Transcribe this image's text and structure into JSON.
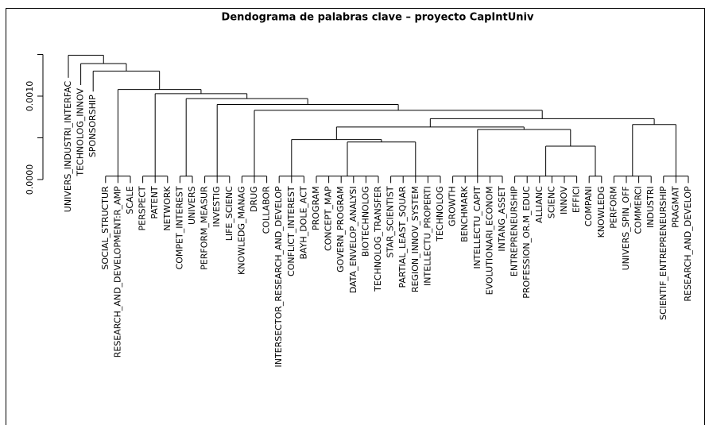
{
  "chart_data": {
    "type": "dendrogram",
    "title": "Dendograma de palabras clave – proyecto CapIntUniv",
    "ylim": [
      0,
      0.0015
    ],
    "yticks": [
      {
        "value": 0,
        "label": "0.0000"
      },
      {
        "value": 0.0005,
        "label": null
      },
      {
        "value": 0.001,
        "label": "0.0010"
      },
      {
        "value": 0.0015,
        "label": null
      }
    ],
    "color": "#000000",
    "tree": {
      "height": 0.00149,
      "children": [
        {
          "label": "UNIVERS_INDUSTRI_INTERFAC"
        },
        {
          "height": 0.00139,
          "children": [
            {
              "label": "TECHNOLOG_INNOV"
            },
            {
              "height": 0.0013,
              "children": [
                {
                  "label": "SPONSORSHIP"
                },
                {
                  "height": 0.00108,
                  "children": [
                    {
                      "height": 4e-05,
                      "children": [
                        {
                          "label": "SOCIAL_STRUCTUR"
                        },
                        {
                          "label": "RESEARCH_AND_DEVELOPMENT:R_AMP"
                        },
                        {
                          "label": "SCALE"
                        }
                      ]
                    },
                    {
                      "height": 0.00103,
                      "children": [
                        {
                          "height": 4e-05,
                          "children": [
                            {
                              "label": "PERSPECT"
                            },
                            {
                              "label": "PATENT"
                            },
                            {
                              "label": "NETWORK"
                            }
                          ]
                        },
                        {
                          "height": 0.00097,
                          "children": [
                            {
                              "height": 4e-05,
                              "children": [
                                {
                                  "label": "COMPET_INTEREST"
                                },
                                {
                                  "label": "UNIVERS"
                                }
                              ]
                            },
                            {
                              "height": 0.0009,
                              "children": [
                                {
                                  "height": 4e-05,
                                  "children": [
                                    {
                                      "label": "PERFORM_MEASUR"
                                    },
                                    {
                                      "label": "INVESTIG"
                                    },
                                    {
                                      "label": "LIFE_SCIENC"
                                    }
                                  ]
                                },
                                {
                                  "height": 0.00083,
                                  "children": [
                                    {
                                      "height": 4e-05,
                                      "children": [
                                        {
                                          "label": "KNOWLEDG_MANAG"
                                        },
                                        {
                                          "label": "DRUG"
                                        },
                                        {
                                          "label": "COLLABOR"
                                        }
                                      ]
                                    },
                                    {
                                      "height": 0.00073,
                                      "children": [
                                        {
                                          "height": 0.00063,
                                          "children": [
                                            {
                                              "height": 0.00048,
                                              "children": [
                                                {
                                                  "height": 4e-05,
                                                  "children": [
                                                    {
                                                      "label": "INTERSECTOR_RESEARCH_AND_DEVELOP"
                                                    },
                                                    {
                                                      "label": "CONFLICT_INTEREST"
                                                    },
                                                    {
                                                      "label": "BAYH_DOLE_ACT"
                                                    }
                                                  ]
                                                },
                                                {
                                                  "height": 0.00045,
                                                  "children": [
                                                    {
                                                      "height": 4e-05,
                                                      "children": [
                                                        {
                                                          "label": "PROGRAM"
                                                        },
                                                        {
                                                          "label": "CONCEPT_MAP"
                                                        },
                                                        {
                                                          "label": "GOVERN_PROGRAM"
                                                        },
                                                        {
                                                          "label": "DATA_ENVELOP_ANALYSI"
                                                        },
                                                        {
                                                          "label": "BIOTECHNOLOG"
                                                        },
                                                        {
                                                          "label": "TECHNOLOG_TRANSFER"
                                                        }
                                                      ]
                                                    },
                                                    {
                                                      "height": 4e-05,
                                                      "children": [
                                                        {
                                                          "label": "STAR_SCIENTIST"
                                                        },
                                                        {
                                                          "label": "PARTIAL_LEAST_SQUAR"
                                                        },
                                                        {
                                                          "label": "REGION_INNOV_SYSTEM"
                                                        },
                                                        {
                                                          "label": "INTELLECTU_PROPERTI"
                                                        },
                                                        {
                                                          "label": "TECHNOLOG"
                                                        }
                                                      ]
                                                    }
                                                  ]
                                                }
                                              ]
                                            },
                                            {
                                              "height": 0.0006,
                                              "children": [
                                                {
                                                  "height": 4e-05,
                                                  "children": [
                                                    {
                                                      "label": "GROWTH"
                                                    },
                                                    {
                                                      "label": "BENCHMARK"
                                                    },
                                                    {
                                                      "label": "INTELLECTU_CAPIT"
                                                    },
                                                    {
                                                      "label": "EVOLUTIONARI_ECONOM"
                                                    },
                                                    {
                                                      "label": "INTANG_ASSET"
                                                    }
                                                  ]
                                                },
                                                {
                                                  "height": 0.0004,
                                                  "children": [
                                                    {
                                                      "height": 4e-05,
                                                      "children": [
                                                        {
                                                          "label": "ENTREPRENEURSHIP"
                                                        },
                                                        {
                                                          "label": "PROFESSION_OR.M_EDUC"
                                                        },
                                                        {
                                                          "label": "ALLIANC"
                                                        },
                                                        {
                                                          "label": "SCIENC"
                                                        },
                                                        {
                                                          "label": "INNOV"
                                                        },
                                                        {
                                                          "label": "EFFICI"
                                                        }
                                                      ]
                                                    },
                                                    {
                                                      "height": 4e-05,
                                                      "children": [
                                                        {
                                                          "label": "COMPANI"
                                                        },
                                                        {
                                                          "label": "KNOWLEDG"
                                                        }
                                                      ]
                                                    }
                                                  ]
                                                }
                                              ]
                                            }
                                          ]
                                        },
                                        {
                                          "height": 0.00066,
                                          "children": [
                                            {
                                              "height": 4e-05,
                                              "children": [
                                                {
                                                  "label": "PERFORM"
                                                },
                                                {
                                                  "label": "UNIVERS_SPIN_OFF"
                                                },
                                                {
                                                  "label": "COMMERCI"
                                                },
                                                {
                                                  "label": "INDUSTRI"
                                                }
                                              ]
                                            },
                                            {
                                              "height": 4e-05,
                                              "children": [
                                                {
                                                  "label": "SCIENTIF_ENTREPRENEURSHIP"
                                                },
                                                {
                                                  "label": "PRAGMAT"
                                                },
                                                {
                                                  "label": "RESEARCH_AND_DEVELOP"
                                                }
                                              ]
                                            }
                                          ]
                                        }
                                      ]
                                    }
                                  ]
                                }
                              ]
                            }
                          ]
                        }
                      ]
                    }
                  ]
                }
              ]
            }
          ]
        }
      ]
    }
  }
}
